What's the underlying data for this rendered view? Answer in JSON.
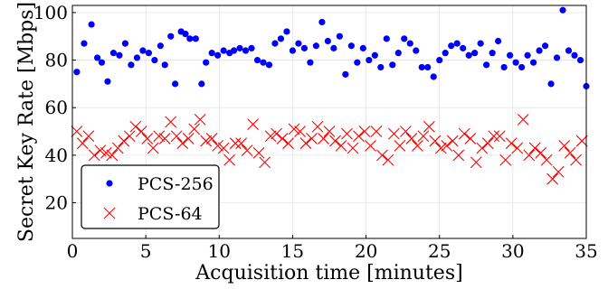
{
  "chart_data": {
    "type": "scatter",
    "xlabel": "Acquisition time [minutes]",
    "ylabel": "Secret Key Rate [Mbps]",
    "xlim": [
      0,
      35
    ],
    "ylim": [
      5,
      103
    ],
    "xticks": [
      0,
      5,
      10,
      15,
      20,
      25,
      30,
      35
    ],
    "yticks": [
      20,
      40,
      60,
      80,
      100
    ],
    "grid": true,
    "legend_position": "lower-left",
    "series": [
      {
        "name": "PCS-256",
        "marker": "circle",
        "color": "#0000ff",
        "x": [
          0.3,
          0.8,
          1.3,
          1.7,
          2.0,
          2.4,
          2.8,
          3.2,
          3.6,
          4.0,
          4.4,
          4.8,
          5.2,
          5.6,
          6.0,
          6.3,
          6.7,
          7.0,
          7.4,
          7.7,
          8.0,
          8.4,
          8.8,
          9.1,
          9.5,
          9.9,
          10.3,
          10.7,
          11.0,
          11.4,
          11.8,
          12.2,
          12.6,
          13.0,
          13.4,
          13.8,
          14.2,
          14.6,
          15.0,
          15.4,
          15.8,
          16.2,
          16.6,
          17.0,
          17.4,
          17.8,
          18.2,
          18.6,
          19.0,
          19.4,
          19.8,
          20.2,
          20.6,
          21.0,
          21.4,
          21.8,
          22.2,
          22.6,
          23.0,
          23.4,
          23.8,
          24.2,
          24.6,
          25.0,
          25.4,
          25.8,
          26.2,
          26.6,
          27.0,
          27.4,
          27.8,
          28.2,
          28.6,
          29.0,
          29.4,
          29.8,
          30.2,
          30.6,
          31.0,
          31.4,
          31.8,
          32.2,
          32.6,
          33.0,
          33.4,
          33.8,
          34.2,
          34.6,
          35.0
        ],
        "y": [
          75,
          87,
          95,
          81,
          79,
          71,
          83,
          82,
          87,
          78,
          81,
          84,
          83,
          80,
          86,
          78,
          90,
          70,
          92,
          91,
          89,
          89,
          70,
          79,
          83,
          82,
          84,
          83,
          84,
          85,
          84,
          85,
          80,
          79,
          78,
          87,
          89,
          92,
          84,
          87,
          85,
          79,
          86,
          96,
          88,
          85,
          90,
          74,
          86,
          79,
          85,
          80,
          82,
          77,
          89,
          78,
          83,
          89,
          87,
          84,
          77,
          77,
          73,
          80,
          83,
          86,
          87,
          85,
          82,
          83,
          87,
          78,
          83,
          88,
          77,
          82,
          79,
          77,
          82,
          79,
          84,
          86,
          70,
          81,
          101,
          84,
          82,
          80,
          69
        ],
        "pixel_note": "measured"
      },
      {
        "name": "PCS-64",
        "marker": "x",
        "color": "#ff0000",
        "x": [
          0.3,
          0.7,
          1.1,
          1.5,
          1.9,
          2.3,
          2.7,
          3.1,
          3.5,
          3.9,
          4.3,
          4.7,
          5.1,
          5.5,
          5.9,
          6.3,
          6.7,
          7.1,
          7.5,
          7.9,
          8.3,
          8.7,
          9.1,
          9.5,
          9.9,
          10.3,
          10.7,
          11.1,
          11.5,
          11.9,
          12.3,
          12.7,
          13.1,
          13.5,
          13.9,
          14.3,
          14.7,
          15.1,
          15.5,
          15.9,
          16.3,
          16.7,
          17.1,
          17.5,
          17.9,
          18.3,
          18.7,
          19.1,
          19.5,
          19.9,
          20.3,
          20.7,
          21.1,
          21.5,
          21.9,
          22.3,
          22.7,
          23.1,
          23.5,
          23.9,
          24.3,
          24.7,
          25.1,
          25.5,
          25.9,
          26.3,
          26.7,
          27.1,
          27.5,
          27.9,
          28.3,
          28.7,
          29.1,
          29.5,
          29.9,
          30.3,
          30.7,
          31.1,
          31.5,
          31.9,
          32.3,
          32.7,
          33.1,
          33.5,
          33.9,
          34.3,
          34.7
        ],
        "y": [
          50,
          45,
          48,
          40,
          42,
          41,
          40,
          43,
          46,
          48,
          52,
          50,
          47,
          43,
          48,
          47,
          54,
          48,
          45,
          47,
          51,
          55,
          46,
          47,
          44,
          43,
          38,
          45,
          45,
          42,
          53,
          41,
          37,
          48,
          49,
          47,
          45,
          51,
          50,
          45,
          47,
          52,
          47,
          50,
          46,
          44,
          49,
          43,
          48,
          50,
          44,
          50,
          40,
          38,
          49,
          44,
          50,
          47,
          44,
          48,
          52,
          46,
          43,
          44,
          46,
          40,
          49,
          47,
          37,
          43,
          45,
          48,
          48,
          38,
          45,
          43,
          55,
          40,
          43,
          41,
          38,
          30,
          33,
          44,
          41,
          38,
          46
        ]
      }
    ]
  }
}
